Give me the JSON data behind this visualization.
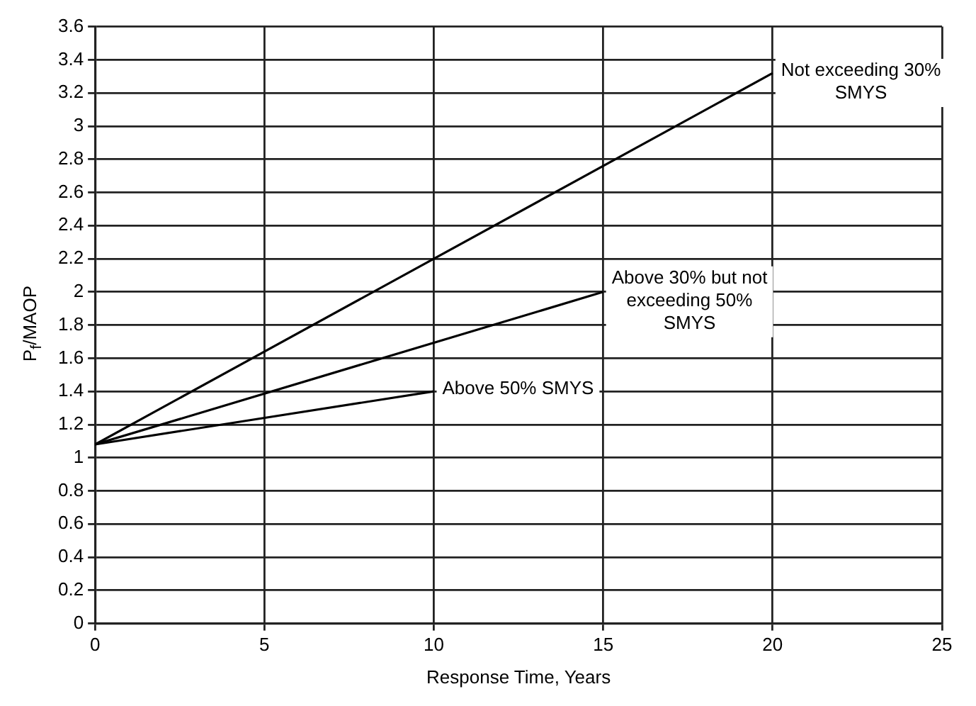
{
  "chart_data": {
    "type": "line",
    "xlabel": "Response Time, Years",
    "ylabel": "P$_{f}$/MAOP",
    "xlim": [
      0,
      25
    ],
    "xticks": [
      0,
      5,
      10,
      15,
      20,
      25
    ],
    "ylim": [
      0,
      3.6
    ],
    "yticks": [
      0,
      0.2,
      0.4,
      0.6,
      0.8,
      1,
      1.2,
      1.4,
      1.6,
      1.8,
      2,
      2.2,
      2.4,
      2.6,
      2.8,
      3,
      3.2,
      3.4,
      3.6
    ],
    "grid": true,
    "legend": false,
    "marker": "none",
    "line_style": "solid",
    "series": [
      {
        "name": "Not exceeding 30% SMYS",
        "color": "#000000",
        "x": [
          0,
          20
        ],
        "values": [
          1.08,
          3.32
        ]
      },
      {
        "name": "Above 30% but not exceeding 50% SMYS",
        "color": "#000000",
        "x": [
          0,
          15
        ],
        "values": [
          1.08,
          2.0
        ]
      },
      {
        "name": "Above 50% SMYS",
        "color": "#000000",
        "x": [
          0,
          10
        ],
        "values": [
          1.08,
          1.4
        ]
      }
    ]
  }
}
